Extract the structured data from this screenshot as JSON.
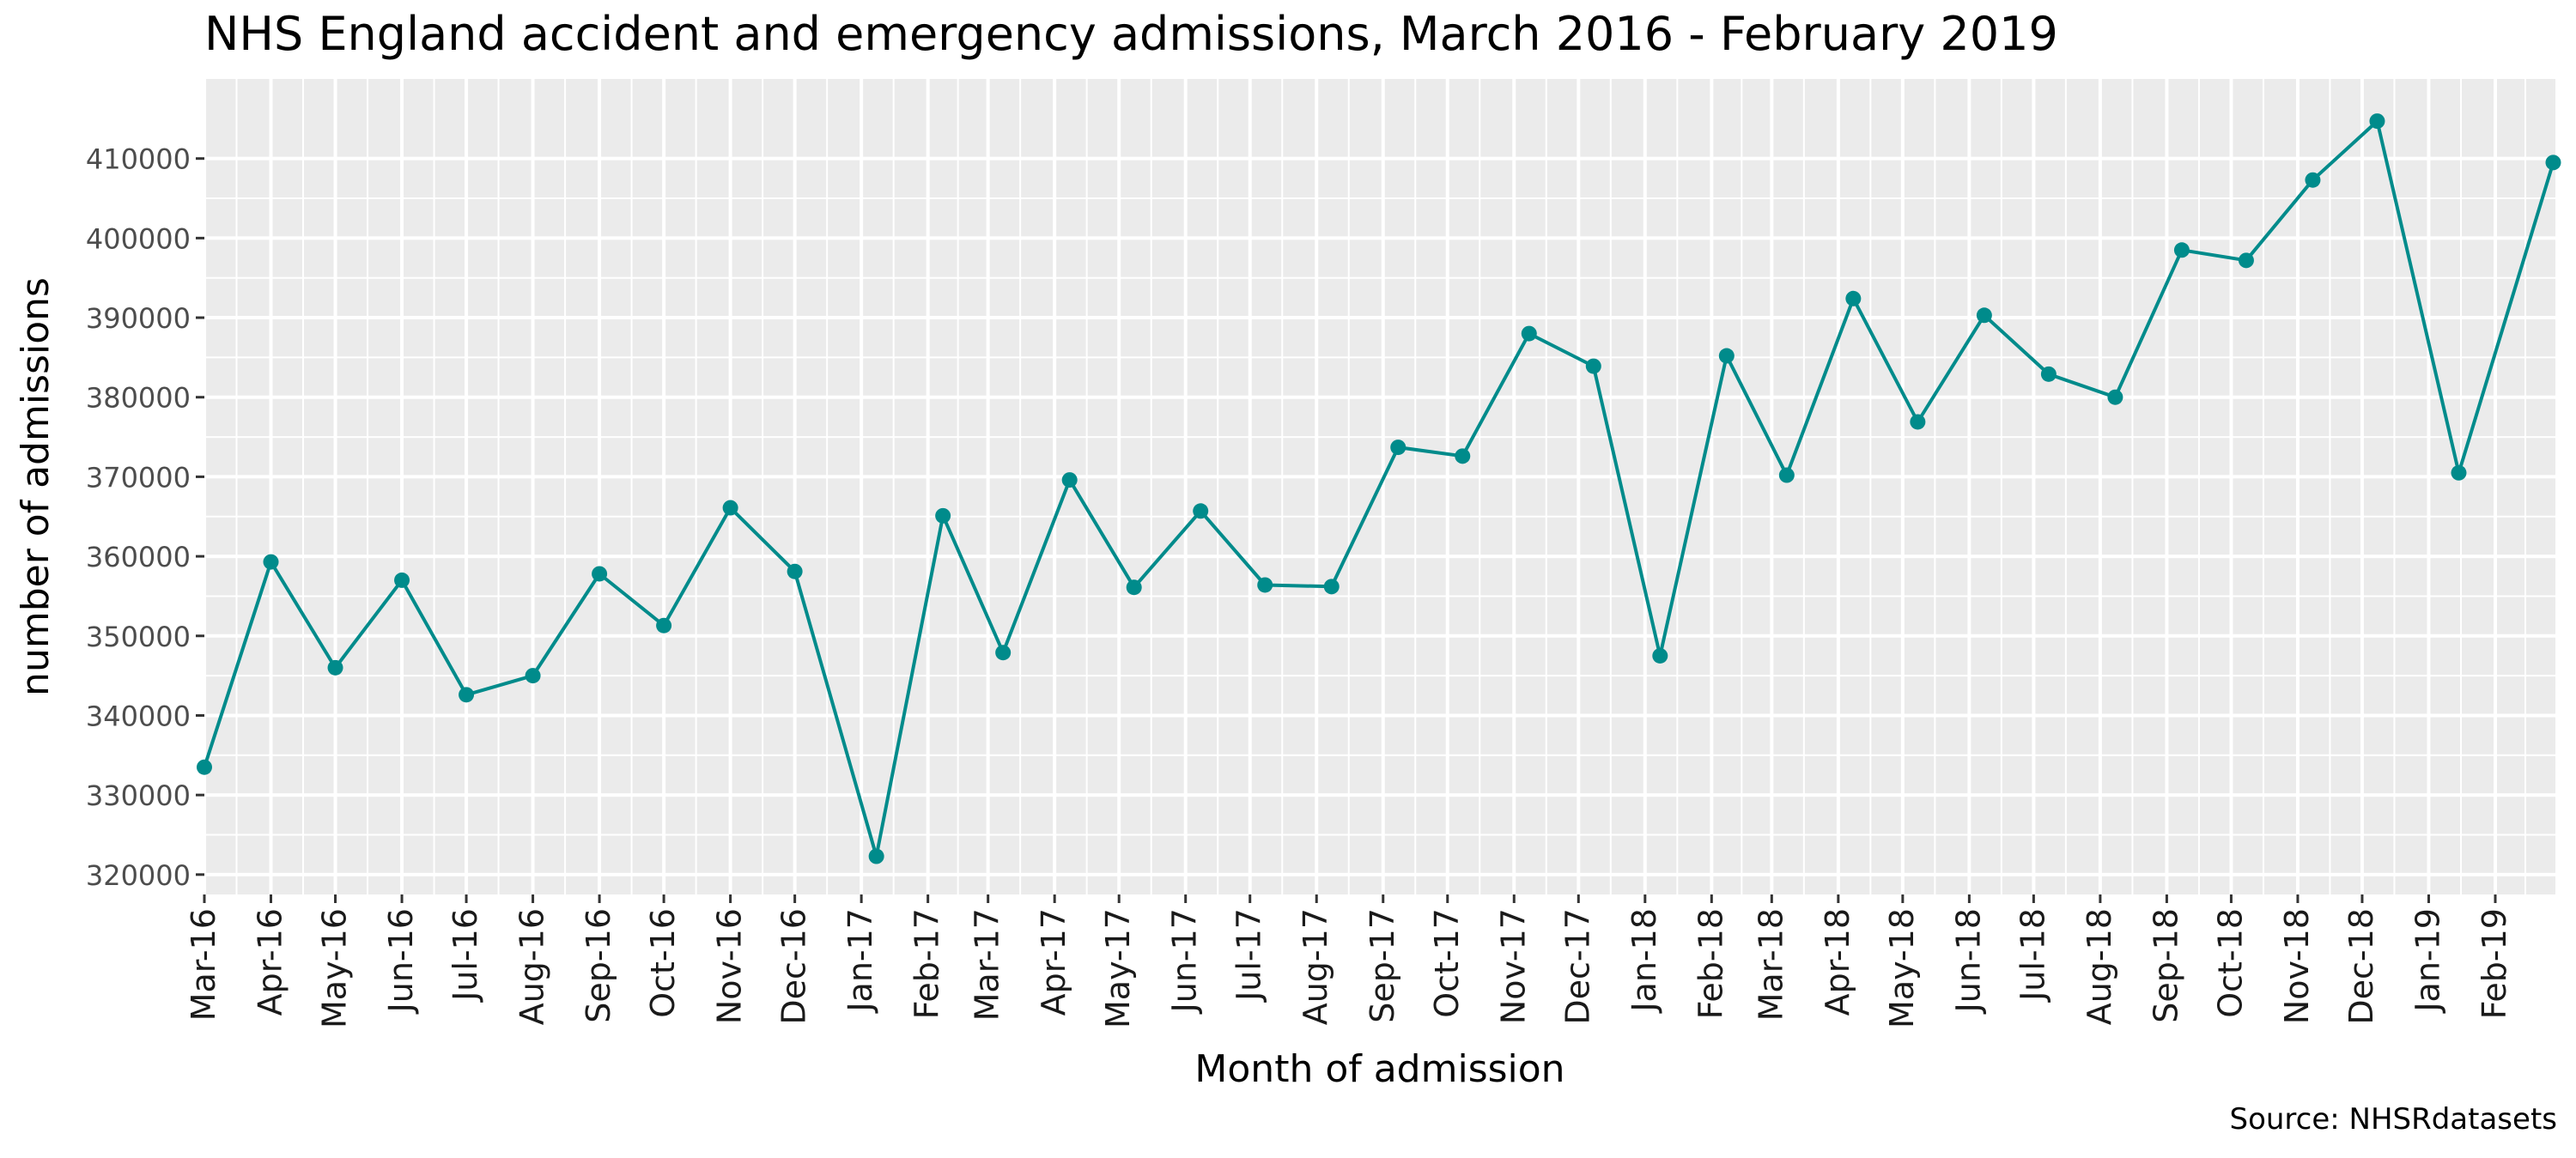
{
  "chart_data": {
    "type": "line",
    "title": "NHS England accident and emergency admissions, March 2016 - February 2019",
    "xlabel": "Month of admission",
    "ylabel": "number of admissions",
    "caption": "Source: NHSRdatasets",
    "x_tick_labels": [
      "Mar-16",
      "Apr-16",
      "May-16",
      "Jun-16",
      "Jul-16",
      "Aug-16",
      "Sep-16",
      "Oct-16",
      "Nov-16",
      "Dec-16",
      "Jan-17",
      "Feb-17",
      "Mar-17",
      "Apr-17",
      "May-17",
      "Jun-17",
      "Jul-17",
      "Aug-17",
      "Sep-17",
      "Oct-17",
      "Nov-17",
      "Dec-17",
      "Jan-18",
      "Feb-18",
      "Mar-18",
      "Apr-18",
      "May-18",
      "Jun-18",
      "Jul-18",
      "Aug-18",
      "Sep-18",
      "Oct-18",
      "Nov-18",
      "Dec-18",
      "Jan-19",
      "Feb-19"
    ],
    "y_ticks": [
      320000,
      330000,
      340000,
      350000,
      360000,
      370000,
      380000,
      390000,
      400000,
      410000
    ],
    "y_tick_labels": [
      "320000",
      "330000",
      "340000",
      "350000",
      "360000",
      "370000",
      "380000",
      "390000",
      "400000",
      "410000"
    ],
    "ylim": [
      317500,
      420000
    ],
    "xlim": [
      "2016-03-01",
      "2019-03-01"
    ],
    "x_scale": "date",
    "grid": true,
    "panel_background": "#ebebeb",
    "grid_color": "#ffffff",
    "series": [
      {
        "color": "#008b8b",
        "points": [
          {
            "x": "2016-03-01",
            "y": 333500
          },
          {
            "x": "2016-04-01",
            "y": 359300
          },
          {
            "x": "2016-05-01",
            "y": 346000
          },
          {
            "x": "2016-06-01",
            "y": 357000
          },
          {
            "x": "2016-07-01",
            "y": 342600
          },
          {
            "x": "2016-08-01",
            "y": 345000
          },
          {
            "x": "2016-09-01",
            "y": 357800
          },
          {
            "x": "2016-10-01",
            "y": 351300
          },
          {
            "x": "2016-11-01",
            "y": 366100
          },
          {
            "x": "2016-12-01",
            "y": 358100
          },
          {
            "x": "2017-01-08",
            "y": 322300
          },
          {
            "x": "2017-02-08",
            "y": 365100
          },
          {
            "x": "2017-03-08",
            "y": 347900
          },
          {
            "x": "2017-04-08",
            "y": 369600
          },
          {
            "x": "2017-05-08",
            "y": 356100
          },
          {
            "x": "2017-06-08",
            "y": 365700
          },
          {
            "x": "2017-07-08",
            "y": 356400
          },
          {
            "x": "2017-08-08",
            "y": 356200
          },
          {
            "x": "2017-09-08",
            "y": 373700
          },
          {
            "x": "2017-10-08",
            "y": 372600
          },
          {
            "x": "2017-11-08",
            "y": 388000
          },
          {
            "x": "2017-12-08",
            "y": 383900
          },
          {
            "x": "2018-01-08",
            "y": 347500
          },
          {
            "x": "2018-02-08",
            "y": 385200
          },
          {
            "x": "2018-03-08",
            "y": 370200
          },
          {
            "x": "2018-04-08",
            "y": 392400
          },
          {
            "x": "2018-05-08",
            "y": 376900
          },
          {
            "x": "2018-06-08",
            "y": 390300
          },
          {
            "x": "2018-07-08",
            "y": 382900
          },
          {
            "x": "2018-08-08",
            "y": 380000
          },
          {
            "x": "2018-09-08",
            "y": 398500
          },
          {
            "x": "2018-10-08",
            "y": 397200
          },
          {
            "x": "2018-11-08",
            "y": 407300
          },
          {
            "x": "2018-12-08",
            "y": 414700
          },
          {
            "x": "2019-01-15",
            "y": 370500
          },
          {
            "x": "2019-02-28",
            "y": 409500
          }
        ]
      }
    ]
  }
}
